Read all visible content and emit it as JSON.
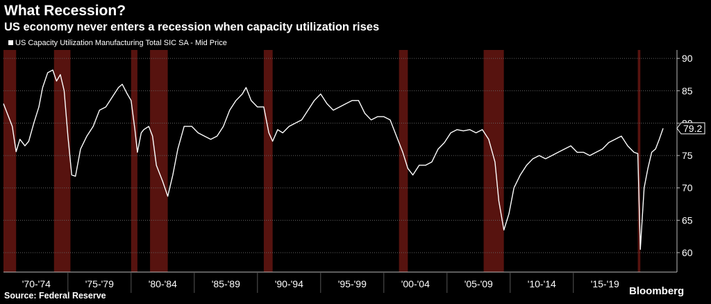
{
  "chart_data": {
    "type": "line",
    "title": "What Recession?",
    "subtitle": "US economy never enters a recession when capacity utilization rises",
    "source": "Source: Federal Reserve",
    "brand": "Bloomberg",
    "xlim": [
      1969.9,
      2023.2
    ],
    "xticks": [
      {
        "value": 1970,
        "label": "'70-'74"
      },
      {
        "value": 1975,
        "label": "'75-'79"
      },
      {
        "value": 1980,
        "label": "'80-'84"
      },
      {
        "value": 1985,
        "label": "'85-'89"
      },
      {
        "value": 1990,
        "label": "'90-'94"
      },
      {
        "value": 1995,
        "label": "'95-'99"
      },
      {
        "value": 2000,
        "label": "'00-'04"
      },
      {
        "value": 2005,
        "label": "'05-'09"
      },
      {
        "value": 2010,
        "label": "'10-'14"
      },
      {
        "value": 2015,
        "label": "'15-'19"
      }
    ],
    "ylim": [
      57,
      91.3
    ],
    "yticks": [
      60,
      65,
      70,
      75,
      80,
      85,
      90
    ],
    "grid": true,
    "recessions": [
      [
        1969.9,
        1970.9
      ],
      [
        1973.9,
        1975.2
      ],
      [
        1980.0,
        1980.5
      ],
      [
        1981.5,
        1982.9
      ],
      [
        1990.5,
        1991.2
      ],
      [
        2001.2,
        2001.9
      ],
      [
        2007.9,
        2009.5
      ],
      [
        2020.1,
        2020.3
      ]
    ],
    "recession_color": "#5c1410",
    "x": [
      1969.9,
      1970.3,
      1970.6,
      1970.9,
      1971.2,
      1971.6,
      1971.9,
      1972.3,
      1972.7,
      1973.0,
      1973.4,
      1973.8,
      1974.1,
      1974.4,
      1974.7,
      1975.0,
      1975.3,
      1975.6,
      1976.0,
      1976.5,
      1977.0,
      1977.5,
      1978.0,
      1978.5,
      1979.0,
      1979.3,
      1979.7,
      1980.0,
      1980.3,
      1980.5,
      1980.8,
      1981.0,
      1981.4,
      1981.7,
      1982.0,
      1982.5,
      1982.9,
      1983.3,
      1983.7,
      1984.2,
      1984.8,
      1985.3,
      1985.8,
      1986.3,
      1986.8,
      1987.3,
      1987.8,
      1988.3,
      1988.8,
      1989.1,
      1989.5,
      1990.0,
      1990.5,
      1990.9,
      1991.2,
      1991.6,
      1992.0,
      1992.5,
      1993.0,
      1993.5,
      1994.0,
      1994.5,
      1995.0,
      1995.5,
      1996.0,
      1996.5,
      1997.0,
      1997.5,
      1998.0,
      1998.5,
      1999.0,
      1999.5,
      2000.0,
      2000.5,
      2001.0,
      2001.5,
      2001.9,
      2002.3,
      2002.8,
      2003.3,
      2003.8,
      2004.3,
      2004.8,
      2005.3,
      2005.8,
      2006.3,
      2006.8,
      2007.3,
      2007.8,
      2008.3,
      2008.8,
      2009.1,
      2009.5,
      2009.9,
      2010.3,
      2010.8,
      2011.3,
      2011.8,
      2012.3,
      2012.8,
      2013.3,
      2013.8,
      2014.3,
      2014.8,
      2015.3,
      2015.8,
      2016.3,
      2016.8,
      2017.3,
      2017.8,
      2018.3,
      2018.8,
      2019.3,
      2019.8,
      2020.1,
      2020.3,
      2020.6,
      2020.9,
      2021.2,
      2021.5,
      2021.8,
      2022.1
    ],
    "series": [
      {
        "name": "US Capacity Utilization Manufacturing Total SIC SA - Mid Price",
        "color": "#ffffff",
        "values": [
          83.0,
          81.0,
          79.5,
          75.6,
          77.5,
          76.5,
          77.2,
          80,
          82.5,
          85.5,
          87.8,
          88.2,
          86.5,
          87.5,
          85,
          78,
          72,
          71.8,
          76,
          78,
          79.5,
          82,
          82.5,
          84,
          85.5,
          86,
          84.5,
          83.5,
          79,
          75.5,
          78.5,
          79,
          79.5,
          78,
          73.5,
          71,
          68.7,
          72,
          76,
          79.5,
          79.5,
          78.5,
          78,
          77.5,
          78,
          79.5,
          82,
          83.5,
          84.5,
          85.5,
          83.5,
          82.5,
          82.5,
          78.5,
          77.2,
          79,
          78.5,
          79.5,
          80,
          80.5,
          82,
          83.5,
          84.5,
          83,
          82,
          82.5,
          83,
          83.5,
          83.5,
          81.5,
          80.5,
          81,
          81,
          80.5,
          78,
          75.5,
          73,
          72,
          73.5,
          73.5,
          74,
          76,
          77,
          78.5,
          79,
          78.8,
          79,
          78.5,
          79,
          77.5,
          74,
          68,
          63.5,
          66,
          70,
          72,
          73.5,
          74.5,
          75,
          74.5,
          75,
          75.5,
          76,
          76.5,
          75.5,
          75.5,
          75,
          75.5,
          76,
          77,
          77.5,
          78,
          76.5,
          75.5,
          75.3,
          60.5,
          70,
          73,
          75.5,
          76,
          77.5,
          79.2
        ]
      }
    ]
  }
}
